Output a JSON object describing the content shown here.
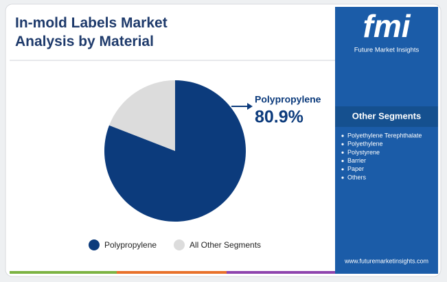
{
  "chart_data": {
    "type": "pie",
    "title": "In-mold Labels Market Analysis by Material",
    "categories": [
      "Polypropylene",
      "All Other Segments"
    ],
    "values": [
      80.9,
      19.1
    ],
    "value_labels": [
      "80.9%",
      null
    ],
    "colors": [
      "#0c3b7c",
      "#dcdcdc"
    ]
  },
  "brand": {
    "logo": "fmi",
    "name": "Future Market Insights",
    "website": "www.futuremarketinsights.com"
  },
  "other_segments": {
    "title": "Other Segments",
    "items": [
      "Polyethylene Terephthalate",
      "Polyethylene",
      "Polystyrene",
      "Barrier",
      "Paper",
      "Others"
    ]
  }
}
